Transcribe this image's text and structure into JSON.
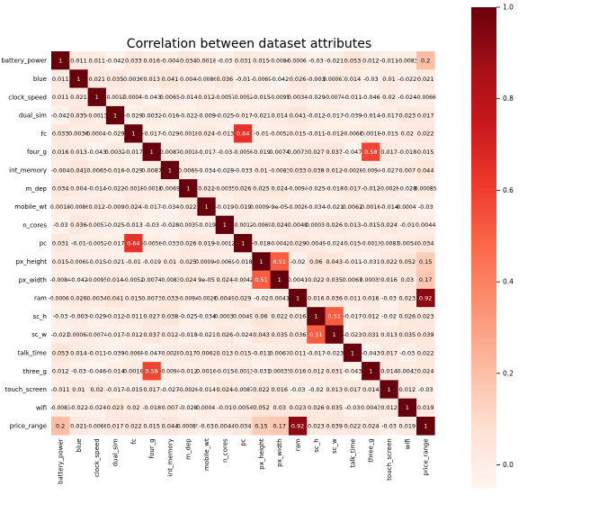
{
  "chart_data": {
    "type": "heatmap",
    "title": "Correlation between dataset attributes",
    "variables": [
      "battery_power",
      "blue",
      "clock_speed",
      "dual_sim",
      "fc",
      "four_g",
      "int_memory",
      "m_dep",
      "mobile_wt",
      "n_cores",
      "pc",
      "px_height",
      "px_width",
      "ram",
      "sc_h",
      "sc_w",
      "talk_time",
      "three_g",
      "touch_screen",
      "wifi",
      "price_range"
    ],
    "cell_labels": [
      [
        "1",
        "0.011",
        "0.011",
        "-0.042",
        "0.033",
        "0.016",
        "-0.004",
        "0.034",
        "0.0018",
        "-0.03",
        "0.031",
        "0.015",
        "-0.0084",
        "-0.00065",
        "-0.03",
        "-0.021",
        "0.053",
        "0.012",
        "-0.011",
        "-0.0083",
        "0.2"
      ],
      [
        "0.011",
        "1",
        "0.021",
        "0.035",
        "0.0036",
        "0.013",
        "0.041",
        "0.004",
        "-0.0086",
        "0.036",
        "-0.01",
        "-0.0069",
        "-0.042",
        "0.026",
        "-0.003",
        "0.00061",
        "0.014",
        "-0.03",
        "0.01",
        "-0.022",
        "0.021"
      ],
      [
        "0.011",
        "0.021",
        "1",
        "-0.0013",
        "-0.00043",
        "-0.043",
        "0.0065",
        "-0.014",
        "0.012",
        "-0.0057",
        "-0.0052",
        "-0.015",
        "-0.0095",
        "0.0034",
        "-0.029",
        "-0.0074",
        "-0.011",
        "-0.046",
        "0.02",
        "-0.024",
        "-0.0066"
      ],
      [
        "-0.042",
        "0.035",
        "-0.0013",
        "1",
        "-0.029",
        "0.0032",
        "-0.016",
        "-0.022",
        "-0.009",
        "-0.025",
        "-0.017",
        "-0.021",
        "0.014",
        "0.041",
        "-0.012",
        "-0.017",
        "-0.039",
        "-0.014",
        "-0.017",
        "0.023",
        "0.017"
      ],
      [
        "0.033",
        "0.0036",
        "-0.00043",
        "-0.029",
        "1",
        "-0.017",
        "-0.029",
        "-0.0018",
        "0.024",
        "-0.013",
        "0.64",
        "-0.01",
        "-0.0052",
        "0.015",
        "-0.011",
        "-0.012",
        "-0.0068",
        "0.0018",
        "-0.015",
        "0.02",
        "0.022"
      ],
      [
        "0.016",
        "0.013",
        "-0.043",
        "0.0032",
        "-0.017",
        "1",
        "0.0087",
        "-0.0018",
        "-0.017",
        "-0.03",
        "-0.0056",
        "-0.019",
        "0.0074",
        "0.0073",
        "0.027",
        "0.037",
        "-0.047",
        "0.58",
        "0.017",
        "-0.018",
        "0.015"
      ],
      [
        "-0.004",
        "0.041",
        "0.0065",
        "-0.016",
        "-0.029",
        "0.0087",
        "1",
        "0.0069",
        "-0.034",
        "-0.028",
        "-0.033",
        "0.01",
        "-0.0083",
        "0.033",
        "0.038",
        "0.012",
        "-0.0028",
        "-0.0094",
        "-0.027",
        "0.007",
        "0.044"
      ],
      [
        "0.034",
        "0.004",
        "-0.014",
        "-0.022",
        "-0.0018",
        "-0.0018",
        "0.0069",
        "1",
        "0.022",
        "-0.0035",
        "0.026",
        "0.025",
        "0.024",
        "-0.0094",
        "-0.025",
        "-0.018",
        "0.017",
        "-0.012",
        "-0.0026",
        "-0.028",
        "0.00085"
      ],
      [
        "0.0018",
        "-0.0086",
        "0.012",
        "-0.009",
        "0.024",
        "-0.017",
        "-0.034",
        "0.022",
        "1",
        "-0.019",
        "0.019",
        "0.00094",
        "9e-05",
        "-0.0026",
        "-0.034",
        "-0.021",
        "0.0062",
        "0.0016",
        "-0.014",
        "-0.00041",
        "-0.03"
      ],
      [
        "-0.03",
        "0.036",
        "-0.0057",
        "-0.025",
        "-0.013",
        "-0.03",
        "-0.028",
        "-0.0035",
        "-0.019",
        "1",
        "-0.0012",
        "-0.0069",
        "0.024",
        "0.0049",
        "-0.00031",
        "0.026",
        "0.013",
        "-0.015",
        "0.024",
        "-0.01",
        "0.0044"
      ],
      [
        "0.031",
        "-0.01",
        "-0.0052",
        "-0.017",
        "0.64",
        "-0.0056",
        "-0.033",
        "0.026",
        "0.019",
        "-0.0012",
        "1",
        "-0.018",
        "-0.0042",
        "0.029",
        "0.0049",
        "-0.024",
        "0.015",
        "-0.0013",
        "-0.0087",
        "0.0054",
        "0.034"
      ],
      [
        "0.015",
        "-0.0069",
        "-0.015",
        "-0.021",
        "-0.01",
        "-0.019",
        "0.01",
        "0.025",
        "0.00094",
        "-0.0069",
        "-0.018",
        "1",
        "0.51",
        "-0.02",
        "0.06",
        "0.043",
        "-0.011",
        "-0.031",
        "0.022",
        "0.052",
        "0.15"
      ],
      [
        "-0.0084",
        "-0.042",
        "-0.0095",
        "0.014",
        "-0.0052",
        "0.0074",
        "-0.0083",
        "0.024",
        "9e-05",
        "0.024",
        "-0.0042",
        "0.51",
        "1",
        "0.0041",
        "0.022",
        "0.035",
        "0.0067",
        "0.00035",
        "0.016",
        "0.03",
        "0.17"
      ],
      [
        "-0.00065",
        "0.026",
        "0.0034",
        "0.041",
        "0.015",
        "0.0073",
        "0.033",
        "-0.0094",
        "-0.0026",
        "0.0049",
        "0.029",
        "-0.02",
        "0.0041",
        "1",
        "0.016",
        "0.036",
        "0.011",
        "0.016",
        "-0.03",
        "0.023",
        "0.92"
      ],
      [
        "-0.03",
        "-0.003",
        "-0.029",
        "-0.012",
        "-0.011",
        "0.027",
        "0.038",
        "-0.025",
        "-0.034",
        "-0.00031",
        "0.0049",
        "0.06",
        "0.022",
        "0.016",
        "1",
        "0.51",
        "-0.017",
        "0.012",
        "-0.02",
        "0.026",
        "0.023"
      ],
      [
        "-0.021",
        "0.00061",
        "-0.0074",
        "-0.017",
        "-0.012",
        "0.037",
        "0.012",
        "-0.018",
        "-0.021",
        "0.026",
        "-0.024",
        "0.043",
        "0.035",
        "0.036",
        "0.51",
        "1",
        "-0.023",
        "0.031",
        "0.013",
        "0.035",
        "0.039"
      ],
      [
        "0.053",
        "0.014",
        "-0.011",
        "-0.039",
        "-0.0068",
        "-0.047",
        "-0.0028",
        "0.017",
        "0.0062",
        "0.013",
        "0.015",
        "-0.011",
        "0.0067",
        "0.011",
        "-0.017",
        "-0.023",
        "1",
        "-0.043",
        "0.017",
        "-0.03",
        "0.022"
      ],
      [
        "0.012",
        "-0.03",
        "-0.046",
        "-0.014",
        "0.0018",
        "0.58",
        "-0.0094",
        "-0.012",
        "0.0016",
        "-0.015",
        "-0.0013",
        "-0.031",
        "0.00035",
        "0.016",
        "0.012",
        "0.031",
        "-0.043",
        "1",
        "0.014",
        "0.0043",
        "0.024"
      ],
      [
        "-0.011",
        "0.01",
        "0.02",
        "-0.017",
        "-0.015",
        "0.017",
        "-0.027",
        "-0.0026",
        "-0.014",
        "0.024",
        "-0.0087",
        "0.022",
        "0.016",
        "-0.03",
        "-0.02",
        "0.013",
        "0.017",
        "0.014",
        "1",
        "0.012",
        "-0.03"
      ],
      [
        "-0.0083",
        "-0.022",
        "-0.024",
        "0.023",
        "0.02",
        "-0.018",
        "0.007",
        "-0.028",
        "-0.00041",
        "-0.01",
        "0.0054",
        "0.052",
        "0.03",
        "0.023",
        "0.026",
        "0.035",
        "-0.03",
        "0.0043",
        "0.012",
        "1",
        "0.019"
      ],
      [
        "0.2",
        "0.021",
        "-0.0066",
        "0.017",
        "0.022",
        "0.015",
        "0.044",
        "0.00085",
        "-0.03",
        "0.0044",
        "0.034",
        "0.15",
        "0.17",
        "0.92",
        "0.023",
        "0.039",
        "0.022",
        "0.024",
        "-0.03",
        "0.019",
        "1"
      ]
    ],
    "colormap": "Reds",
    "colorbar": {
      "min": -0.05,
      "max": 1.0,
      "ticks": [
        "0.0",
        "0.2",
        "0.4",
        "0.6",
        "0.8",
        "1.0"
      ]
    },
    "grid": false
  }
}
